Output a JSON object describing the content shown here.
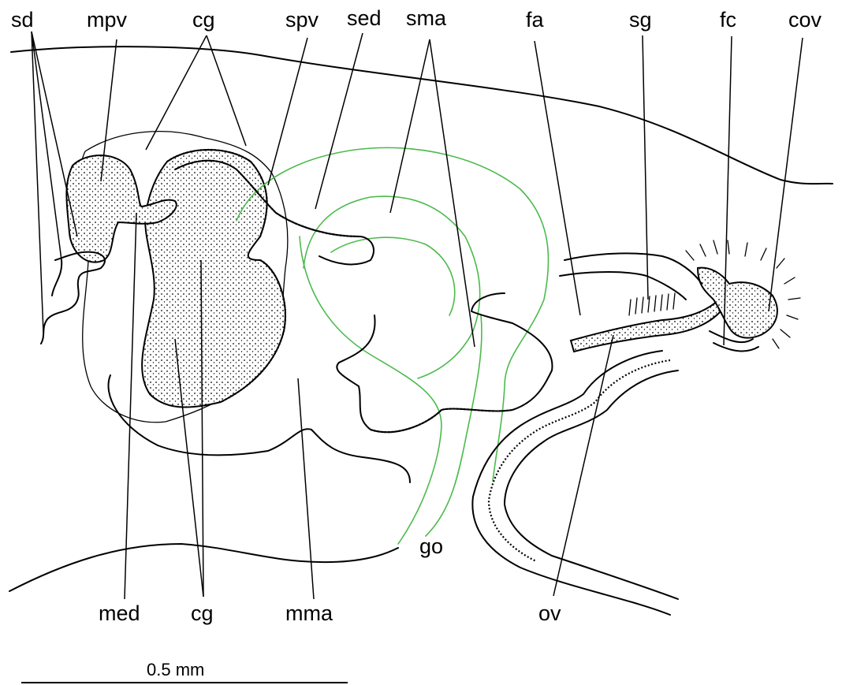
{
  "labels": {
    "sd": "sd",
    "mpv": "mpv",
    "cg_top": "cg",
    "spv": "spv",
    "sed": "sed",
    "sma": "sma",
    "fa": "fa",
    "sg": "sg",
    "fc": "fc",
    "cov": "cov",
    "med": "med",
    "cg_bottom": "cg",
    "mma": "mma",
    "go": "go",
    "ov": "ov"
  },
  "scale_bar": {
    "label": "0.5 mm"
  },
  "colors": {
    "outline": "#000000",
    "gonad": "#4cba4c",
    "background": "#ffffff"
  }
}
